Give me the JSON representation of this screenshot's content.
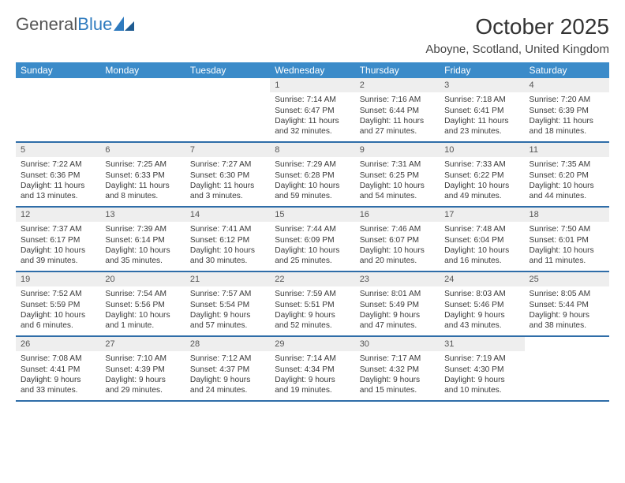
{
  "logo": {
    "text_gray": "General",
    "text_blue": "Blue"
  },
  "title": {
    "month": "October 2025",
    "location": "Aboyne, Scotland, United Kingdom"
  },
  "colors": {
    "header_bg": "#3b8bc9",
    "header_text": "#ffffff",
    "week_border": "#2f6da8",
    "daynum_bg": "#eeeeee",
    "text": "#3a3a3a",
    "accent": "#2f7bbf"
  },
  "weekdays": [
    "Sunday",
    "Monday",
    "Tuesday",
    "Wednesday",
    "Thursday",
    "Friday",
    "Saturday"
  ],
  "weeks": [
    [
      {
        "n": "",
        "sr": "",
        "ss": "",
        "d1": "",
        "d2": ""
      },
      {
        "n": "",
        "sr": "",
        "ss": "",
        "d1": "",
        "d2": ""
      },
      {
        "n": "",
        "sr": "",
        "ss": "",
        "d1": "",
        "d2": ""
      },
      {
        "n": "1",
        "sr": "Sunrise: 7:14 AM",
        "ss": "Sunset: 6:47 PM",
        "d1": "Daylight: 11 hours",
        "d2": "and 32 minutes."
      },
      {
        "n": "2",
        "sr": "Sunrise: 7:16 AM",
        "ss": "Sunset: 6:44 PM",
        "d1": "Daylight: 11 hours",
        "d2": "and 27 minutes."
      },
      {
        "n": "3",
        "sr": "Sunrise: 7:18 AM",
        "ss": "Sunset: 6:41 PM",
        "d1": "Daylight: 11 hours",
        "d2": "and 23 minutes."
      },
      {
        "n": "4",
        "sr": "Sunrise: 7:20 AM",
        "ss": "Sunset: 6:39 PM",
        "d1": "Daylight: 11 hours",
        "d2": "and 18 minutes."
      }
    ],
    [
      {
        "n": "5",
        "sr": "Sunrise: 7:22 AM",
        "ss": "Sunset: 6:36 PM",
        "d1": "Daylight: 11 hours",
        "d2": "and 13 minutes."
      },
      {
        "n": "6",
        "sr": "Sunrise: 7:25 AM",
        "ss": "Sunset: 6:33 PM",
        "d1": "Daylight: 11 hours",
        "d2": "and 8 minutes."
      },
      {
        "n": "7",
        "sr": "Sunrise: 7:27 AM",
        "ss": "Sunset: 6:30 PM",
        "d1": "Daylight: 11 hours",
        "d2": "and 3 minutes."
      },
      {
        "n": "8",
        "sr": "Sunrise: 7:29 AM",
        "ss": "Sunset: 6:28 PM",
        "d1": "Daylight: 10 hours",
        "d2": "and 59 minutes."
      },
      {
        "n": "9",
        "sr": "Sunrise: 7:31 AM",
        "ss": "Sunset: 6:25 PM",
        "d1": "Daylight: 10 hours",
        "d2": "and 54 minutes."
      },
      {
        "n": "10",
        "sr": "Sunrise: 7:33 AM",
        "ss": "Sunset: 6:22 PM",
        "d1": "Daylight: 10 hours",
        "d2": "and 49 minutes."
      },
      {
        "n": "11",
        "sr": "Sunrise: 7:35 AM",
        "ss": "Sunset: 6:20 PM",
        "d1": "Daylight: 10 hours",
        "d2": "and 44 minutes."
      }
    ],
    [
      {
        "n": "12",
        "sr": "Sunrise: 7:37 AM",
        "ss": "Sunset: 6:17 PM",
        "d1": "Daylight: 10 hours",
        "d2": "and 39 minutes."
      },
      {
        "n": "13",
        "sr": "Sunrise: 7:39 AM",
        "ss": "Sunset: 6:14 PM",
        "d1": "Daylight: 10 hours",
        "d2": "and 35 minutes."
      },
      {
        "n": "14",
        "sr": "Sunrise: 7:41 AM",
        "ss": "Sunset: 6:12 PM",
        "d1": "Daylight: 10 hours",
        "d2": "and 30 minutes."
      },
      {
        "n": "15",
        "sr": "Sunrise: 7:44 AM",
        "ss": "Sunset: 6:09 PM",
        "d1": "Daylight: 10 hours",
        "d2": "and 25 minutes."
      },
      {
        "n": "16",
        "sr": "Sunrise: 7:46 AM",
        "ss": "Sunset: 6:07 PM",
        "d1": "Daylight: 10 hours",
        "d2": "and 20 minutes."
      },
      {
        "n": "17",
        "sr": "Sunrise: 7:48 AM",
        "ss": "Sunset: 6:04 PM",
        "d1": "Daylight: 10 hours",
        "d2": "and 16 minutes."
      },
      {
        "n": "18",
        "sr": "Sunrise: 7:50 AM",
        "ss": "Sunset: 6:01 PM",
        "d1": "Daylight: 10 hours",
        "d2": "and 11 minutes."
      }
    ],
    [
      {
        "n": "19",
        "sr": "Sunrise: 7:52 AM",
        "ss": "Sunset: 5:59 PM",
        "d1": "Daylight: 10 hours",
        "d2": "and 6 minutes."
      },
      {
        "n": "20",
        "sr": "Sunrise: 7:54 AM",
        "ss": "Sunset: 5:56 PM",
        "d1": "Daylight: 10 hours",
        "d2": "and 1 minute."
      },
      {
        "n": "21",
        "sr": "Sunrise: 7:57 AM",
        "ss": "Sunset: 5:54 PM",
        "d1": "Daylight: 9 hours",
        "d2": "and 57 minutes."
      },
      {
        "n": "22",
        "sr": "Sunrise: 7:59 AM",
        "ss": "Sunset: 5:51 PM",
        "d1": "Daylight: 9 hours",
        "d2": "and 52 minutes."
      },
      {
        "n": "23",
        "sr": "Sunrise: 8:01 AM",
        "ss": "Sunset: 5:49 PM",
        "d1": "Daylight: 9 hours",
        "d2": "and 47 minutes."
      },
      {
        "n": "24",
        "sr": "Sunrise: 8:03 AM",
        "ss": "Sunset: 5:46 PM",
        "d1": "Daylight: 9 hours",
        "d2": "and 43 minutes."
      },
      {
        "n": "25",
        "sr": "Sunrise: 8:05 AM",
        "ss": "Sunset: 5:44 PM",
        "d1": "Daylight: 9 hours",
        "d2": "and 38 minutes."
      }
    ],
    [
      {
        "n": "26",
        "sr": "Sunrise: 7:08 AM",
        "ss": "Sunset: 4:41 PM",
        "d1": "Daylight: 9 hours",
        "d2": "and 33 minutes."
      },
      {
        "n": "27",
        "sr": "Sunrise: 7:10 AM",
        "ss": "Sunset: 4:39 PM",
        "d1": "Daylight: 9 hours",
        "d2": "and 29 minutes."
      },
      {
        "n": "28",
        "sr": "Sunrise: 7:12 AM",
        "ss": "Sunset: 4:37 PM",
        "d1": "Daylight: 9 hours",
        "d2": "and 24 minutes."
      },
      {
        "n": "29",
        "sr": "Sunrise: 7:14 AM",
        "ss": "Sunset: 4:34 PM",
        "d1": "Daylight: 9 hours",
        "d2": "and 19 minutes."
      },
      {
        "n": "30",
        "sr": "Sunrise: 7:17 AM",
        "ss": "Sunset: 4:32 PM",
        "d1": "Daylight: 9 hours",
        "d2": "and 15 minutes."
      },
      {
        "n": "31",
        "sr": "Sunrise: 7:19 AM",
        "ss": "Sunset: 4:30 PM",
        "d1": "Daylight: 9 hours",
        "d2": "and 10 minutes."
      },
      {
        "n": "",
        "sr": "",
        "ss": "",
        "d1": "",
        "d2": ""
      }
    ]
  ]
}
